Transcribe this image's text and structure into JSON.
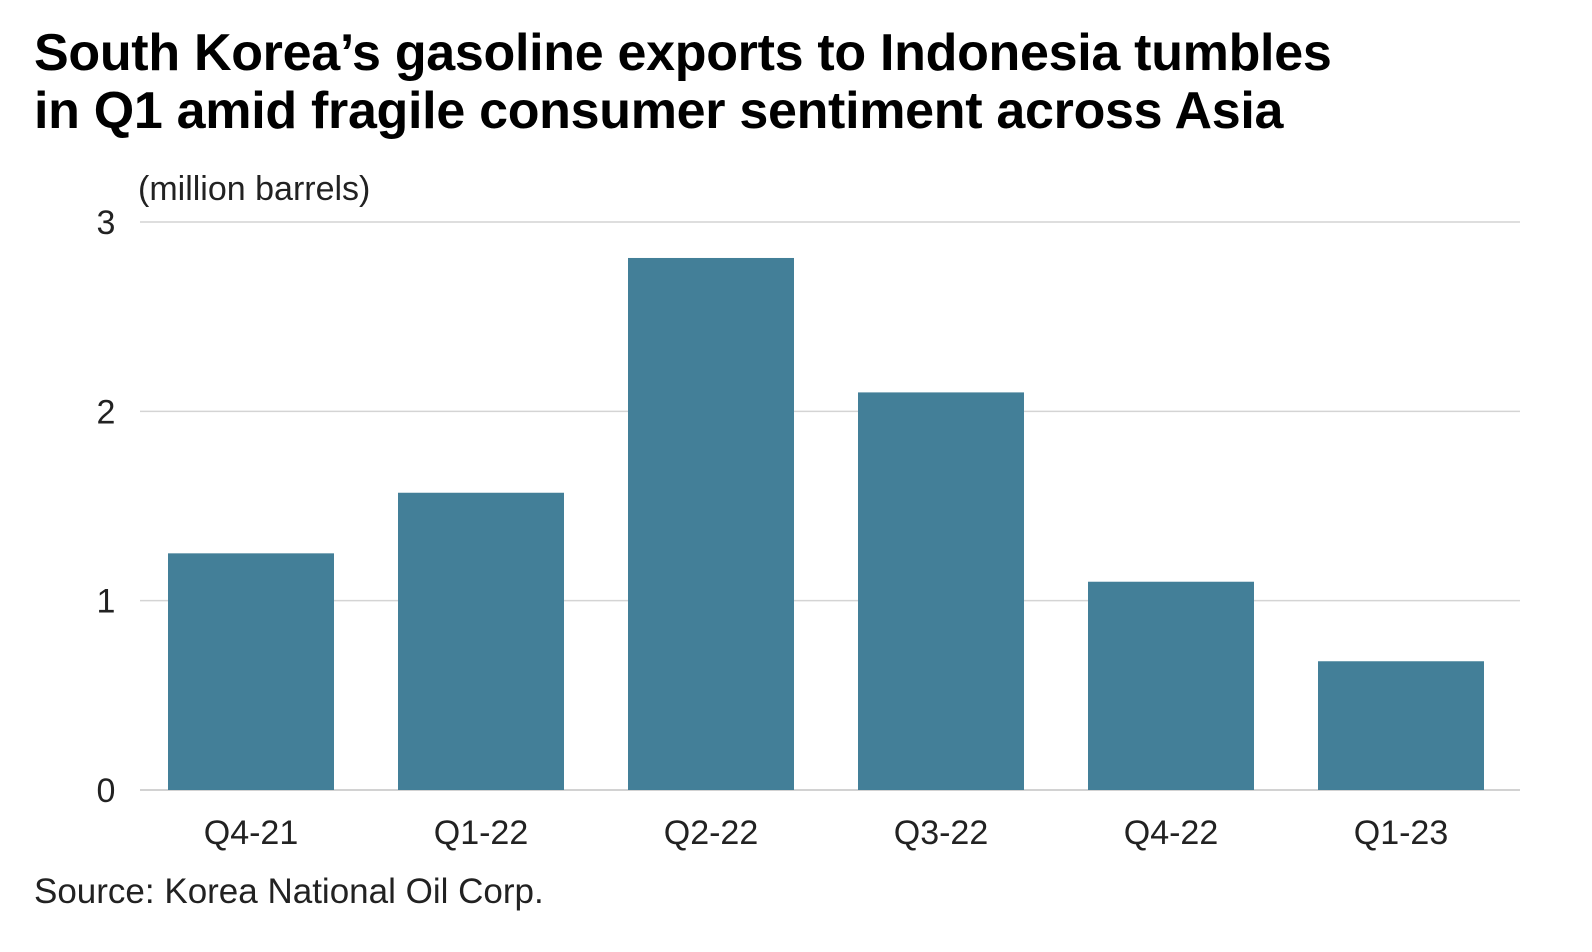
{
  "title_lines": [
    "South Korea’s gasoline exports to Indonesia tumbles",
    "in Q1 amid fragile consumer sentiment across Asia"
  ],
  "source": "Source: Korea National Oil Corp.",
  "colors": {
    "bar": "#437f98",
    "grid": "#d4d4d4",
    "text": "#222222"
  },
  "chart_data": {
    "type": "bar",
    "title": "South Korea’s gasoline exports to Indonesia tumbles in Q1 amid fragile consumer sentiment across Asia",
    "ylabel": "(million barrels)",
    "xlabel": "",
    "categories": [
      "Q4-21",
      "Q1-22",
      "Q2-22",
      "Q3-22",
      "Q4-22",
      "Q1-23"
    ],
    "values": [
      1.25,
      1.57,
      2.81,
      2.1,
      1.1,
      0.68
    ],
    "ylim": [
      0,
      3
    ],
    "yticks": [
      0,
      1,
      2,
      3
    ],
    "grid": true,
    "legend": "none"
  }
}
